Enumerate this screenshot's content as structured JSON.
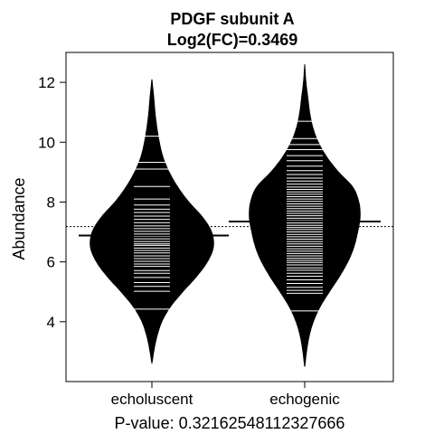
{
  "chart_data": {
    "type": "beanplot",
    "title_line1": "PDGF subunit A",
    "title_line2": "Log2(FC)=0.3469",
    "ylabel": "Abundance",
    "xlabel": "P-value: 0.32162548112327666",
    "ylim": [
      2.0,
      13.0
    ],
    "yticks": [
      4,
      6,
      8,
      10,
      12
    ],
    "overall_mean": 7.18,
    "colors": {
      "bean": "#000000",
      "line": "#ffffff",
      "background": "#ffffff"
    },
    "series": [
      {
        "name": "echoluscent",
        "mean": 6.88,
        "density": [
          [
            2.6,
            0.0
          ],
          [
            3.0,
            0.03
          ],
          [
            3.5,
            0.08
          ],
          [
            4.0,
            0.16
          ],
          [
            4.5,
            0.3
          ],
          [
            5.0,
            0.5
          ],
          [
            5.5,
            0.72
          ],
          [
            6.0,
            0.9
          ],
          [
            6.5,
            1.0
          ],
          [
            7.0,
            0.97
          ],
          [
            7.5,
            0.82
          ],
          [
            8.0,
            0.6
          ],
          [
            8.5,
            0.42
          ],
          [
            9.0,
            0.28
          ],
          [
            9.5,
            0.18
          ],
          [
            10.0,
            0.12
          ],
          [
            10.5,
            0.08
          ],
          [
            11.0,
            0.05
          ],
          [
            11.5,
            0.03
          ],
          [
            12.1,
            0.0
          ]
        ],
        "points": [
          4.42,
          5.02,
          5.18,
          5.31,
          5.48,
          5.62,
          5.71,
          5.85,
          5.93,
          6.02,
          6.11,
          6.2,
          6.3,
          6.38,
          6.46,
          6.55,
          6.6,
          6.68,
          6.77,
          6.85,
          6.93,
          7.02,
          7.11,
          7.2,
          7.31,
          7.42,
          7.53,
          7.65,
          7.76,
          7.9,
          8.1,
          8.52,
          9.1,
          9.33,
          10.2
        ]
      },
      {
        "name": "echogenic",
        "mean": 7.35,
        "density": [
          [
            2.5,
            0.0
          ],
          [
            3.0,
            0.03
          ],
          [
            3.5,
            0.07
          ],
          [
            4.0,
            0.14
          ],
          [
            4.5,
            0.25
          ],
          [
            5.0,
            0.4
          ],
          [
            5.5,
            0.56
          ],
          [
            6.0,
            0.7
          ],
          [
            6.5,
            0.8
          ],
          [
            7.0,
            0.86
          ],
          [
            7.5,
            0.9
          ],
          [
            8.0,
            0.88
          ],
          [
            8.5,
            0.78
          ],
          [
            9.0,
            0.55
          ],
          [
            9.5,
            0.36
          ],
          [
            10.0,
            0.22
          ],
          [
            10.5,
            0.13
          ],
          [
            11.0,
            0.08
          ],
          [
            11.5,
            0.05
          ],
          [
            12.0,
            0.02
          ],
          [
            12.6,
            0.0
          ]
        ],
        "points": [
          4.36,
          4.95,
          5.05,
          5.15,
          5.28,
          5.4,
          5.52,
          5.62,
          5.72,
          5.8,
          5.9,
          5.98,
          6.05,
          6.12,
          6.2,
          6.28,
          6.36,
          6.44,
          6.52,
          6.6,
          6.68,
          6.76,
          6.84,
          6.92,
          7.0,
          7.08,
          7.15,
          7.22,
          7.3,
          7.38,
          7.46,
          7.54,
          7.62,
          7.7,
          7.78,
          7.86,
          7.94,
          8.02,
          8.1,
          8.18,
          8.26,
          8.34,
          8.42,
          8.5,
          8.6,
          8.7,
          8.8,
          8.92,
          9.05,
          9.2,
          9.38,
          9.55,
          9.75,
          9.92,
          10.12,
          10.7
        ]
      }
    ]
  }
}
